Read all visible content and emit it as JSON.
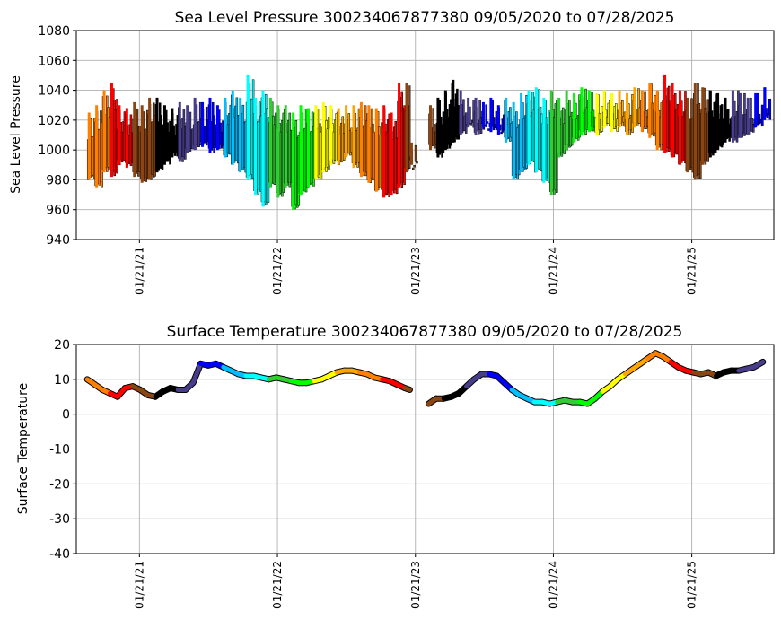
{
  "chart_data": [
    {
      "type": "scatter",
      "title": "Sea Level Pressure 300234067877380  09/05/2020 to 07/28/2025",
      "xlabel": "",
      "ylabel": "Sea Level Pressure",
      "ylim": [
        940,
        1080
      ],
      "yticks": [
        940,
        960,
        980,
        1000,
        1020,
        1040,
        1060,
        1080
      ],
      "xlim": [
        "2020-08-07",
        "2025-08-26"
      ],
      "xticks": [
        "01/21/21",
        "01/21/22",
        "01/21/23",
        "01/21/24",
        "01/21/25"
      ],
      "grid": true,
      "colormap": [
        "#ff8000",
        "#ff0000",
        "#8b4513",
        "#000000",
        "#483d8b",
        "#0000ff",
        "#00bfff",
        "#00ffff",
        "#32cd32",
        "#00ff00",
        "#ffff00",
        "#ffa500"
      ],
      "series": [
        {
          "x": [
            "2020-09-05",
            "2020-09-25",
            "2020-10-15",
            "2020-11-04",
            "2020-11-24",
            "2020-12-14",
            "2021-01-03",
            "2021-01-23",
            "2021-02-12",
            "2021-03-04",
            "2021-03-24",
            "2021-04-13",
            "2021-05-03",
            "2021-05-23",
            "2021-06-12",
            "2021-07-02",
            "2021-07-22",
            "2021-08-11",
            "2021-08-31",
            "2021-09-20",
            "2021-10-10",
            "2021-10-30",
            "2021-11-19",
            "2021-12-09",
            "2021-12-29",
            "2022-01-18",
            "2022-02-07",
            "2022-02-27",
            "2022-03-19",
            "2022-04-08",
            "2022-04-28",
            "2022-05-18",
            "2022-06-07",
            "2022-06-27",
            "2022-07-17",
            "2022-08-06",
            "2022-08-26",
            "2022-09-15",
            "2022-10-05",
            "2022-10-25",
            "2022-11-14",
            "2022-12-04",
            "2022-12-24",
            "2023-01-06"
          ],
          "low": [
            980,
            975,
            985,
            982,
            990,
            988,
            982,
            978,
            980,
            985,
            990,
            995,
            992,
            998,
            1000,
            1002,
            998,
            1000,
            995,
            990,
            985,
            980,
            970,
            962,
            975,
            968,
            975,
            960,
            970,
            975,
            980,
            985,
            990,
            990,
            995,
            988,
            982,
            978,
            972,
            968,
            970,
            975,
            985,
            990
          ],
          "high": [
            1025,
            1030,
            1040,
            1045,
            1030,
            1028,
            1032,
            1030,
            1035,
            1035,
            1030,
            1028,
            1032,
            1030,
            1035,
            1032,
            1035,
            1030,
            1035,
            1040,
            1035,
            1050,
            1035,
            1040,
            1035,
            1030,
            1030,
            1025,
            1030,
            1028,
            1030,
            1032,
            1030,
            1028,
            1030,
            1030,
            1032,
            1030,
            1028,
            1030,
            1025,
            1045,
            1045,
            1005
          ]
        },
        {
          "x": [
            "2023-02-25",
            "2023-03-17",
            "2023-04-06",
            "2023-04-26",
            "2023-05-16",
            "2023-06-05",
            "2023-06-25",
            "2023-07-15",
            "2023-08-04",
            "2023-08-24",
            "2023-09-13",
            "2023-10-03",
            "2023-10-23",
            "2023-11-12",
            "2023-12-02",
            "2023-12-22",
            "2024-01-11",
            "2024-01-31",
            "2024-02-20",
            "2024-03-11",
            "2024-03-31",
            "2024-04-20",
            "2024-05-10",
            "2024-05-30",
            "2024-06-19",
            "2024-07-09",
            "2024-07-29",
            "2024-08-18",
            "2024-09-07",
            "2024-09-27",
            "2024-10-17",
            "2024-11-06",
            "2024-11-26",
            "2024-12-16",
            "2025-01-05",
            "2025-01-25",
            "2025-02-14",
            "2025-03-06",
            "2025-03-26",
            "2025-04-15",
            "2025-05-05",
            "2025-05-25",
            "2025-06-14",
            "2025-07-04",
            "2025-07-28"
          ],
          "low": [
            1000,
            995,
            1000,
            1005,
            1010,
            1015,
            1010,
            1015,
            1012,
            1010,
            1005,
            980,
            985,
            990,
            985,
            978,
            970,
            995,
            1000,
            1005,
            1010,
            1012,
            1010,
            1015,
            1012,
            1015,
            1010,
            1015,
            1012,
            1008,
            1000,
            998,
            995,
            990,
            985,
            980,
            990,
            995,
            1000,
            1005,
            1005,
            1008,
            1010,
            1015,
            1020
          ],
          "high": [
            1030,
            1035,
            1040,
            1047,
            1040,
            1035,
            1035,
            1032,
            1035,
            1030,
            1035,
            1032,
            1038,
            1040,
            1042,
            1035,
            1040,
            1035,
            1040,
            1038,
            1042,
            1040,
            1038,
            1040,
            1038,
            1040,
            1038,
            1042,
            1040,
            1045,
            1040,
            1050,
            1045,
            1040,
            1035,
            1045,
            1042,
            1040,
            1038,
            1035,
            1040,
            1038,
            1035,
            1038,
            1042
          ]
        }
      ]
    },
    {
      "type": "scatter",
      "title": "Surface Temperature 300234067877380  09/05/2020 to 07/28/2025",
      "xlabel": "",
      "ylabel": "Surface Temperature",
      "ylim": [
        -40,
        20
      ],
      "yticks": [
        -40,
        -30,
        -20,
        -10,
        0,
        10,
        20
      ],
      "xlim": [
        "2020-08-07",
        "2025-08-26"
      ],
      "xticks": [
        "01/21/21",
        "01/21/22",
        "01/21/23",
        "01/21/24",
        "01/21/25"
      ],
      "grid": true,
      "series": [
        {
          "x": [
            "2020-09-05",
            "2020-09-25",
            "2020-10-15",
            "2020-11-04",
            "2020-11-24",
            "2020-12-14",
            "2021-01-03",
            "2021-01-23",
            "2021-02-12",
            "2021-03-04",
            "2021-03-24",
            "2021-04-13",
            "2021-05-03",
            "2021-05-23",
            "2021-06-12",
            "2021-07-02",
            "2021-07-22",
            "2021-08-11",
            "2021-08-31",
            "2021-09-20",
            "2021-10-10",
            "2021-10-30",
            "2021-11-19",
            "2021-12-09",
            "2021-12-29",
            "2022-01-18",
            "2022-02-07",
            "2022-02-27",
            "2022-03-19",
            "2022-04-08",
            "2022-04-28",
            "2022-05-18",
            "2022-06-07",
            "2022-06-27",
            "2022-07-17",
            "2022-08-06",
            "2022-08-26",
            "2022-09-15",
            "2022-10-05",
            "2022-10-25",
            "2022-11-14",
            "2022-12-04",
            "2022-12-24",
            "2023-01-06"
          ],
          "y": [
            10.0,
            8.5,
            7.0,
            6.0,
            5.0,
            7.5,
            8.0,
            7.0,
            5.5,
            5.0,
            6.5,
            7.5,
            7.0,
            7.0,
            9.0,
            14.5,
            14.0,
            14.5,
            13.5,
            12.5,
            11.5,
            11.0,
            11.0,
            10.5,
            10.0,
            10.5,
            10.0,
            9.5,
            9.0,
            9.0,
            9.5,
            10.0,
            11.0,
            12.0,
            12.5,
            12.5,
            12.0,
            11.5,
            10.5,
            10.0,
            9.5,
            8.5,
            7.5,
            7.0
          ]
        },
        {
          "x": [
            "2023-02-25",
            "2023-03-17",
            "2023-04-06",
            "2023-04-26",
            "2023-05-16",
            "2023-06-05",
            "2023-06-25",
            "2023-07-15",
            "2023-08-04",
            "2023-08-24",
            "2023-09-13",
            "2023-10-03",
            "2023-10-23",
            "2023-11-12",
            "2023-12-02",
            "2023-12-22",
            "2024-01-11",
            "2024-01-31",
            "2024-02-20",
            "2024-03-11",
            "2024-03-31",
            "2024-04-20",
            "2024-05-10",
            "2024-05-30",
            "2024-06-19",
            "2024-07-09",
            "2024-07-29",
            "2024-08-18",
            "2024-09-07",
            "2024-09-27",
            "2024-10-17",
            "2024-11-06",
            "2024-11-26",
            "2024-12-16",
            "2025-01-05",
            "2025-01-25",
            "2025-02-14",
            "2025-03-06",
            "2025-03-26",
            "2025-04-15",
            "2025-05-05",
            "2025-05-25",
            "2025-06-14",
            "2025-07-04",
            "2025-07-28"
          ],
          "y": [
            3.0,
            4.5,
            4.5,
            5.0,
            6.0,
            8.0,
            10.0,
            11.5,
            11.5,
            11.0,
            9.0,
            7.0,
            5.5,
            4.5,
            3.5,
            3.5,
            3.0,
            3.5,
            4.0,
            3.5,
            3.5,
            3.0,
            4.5,
            6.5,
            8.0,
            10.0,
            11.5,
            13.0,
            14.5,
            16.0,
            17.5,
            16.5,
            15.0,
            13.5,
            12.5,
            12.0,
            11.5,
            12.0,
            11.0,
            12.0,
            12.5,
            12.5,
            13.0,
            13.5,
            15.0
          ]
        }
      ]
    }
  ]
}
